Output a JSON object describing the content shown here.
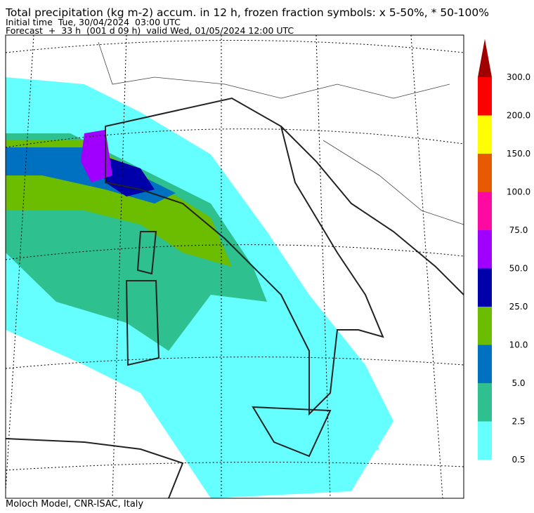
{
  "header": {
    "title": "Total precipitation (kg m-2) accum. in 12 h, frozen fraction symbols: x 5-50%, * 50-100%",
    "initial_time": "Initial time  Tue, 30/04/2024  03:00 UTC",
    "forecast": "Forecast  +  33 h  (001 d 09 h)  valid Wed, 01/05/2024 12:00 UTC"
  },
  "colorbar": {
    "labels": [
      "0.5",
      "2.5",
      "5.0",
      "10.0",
      "25.0",
      "50.0",
      "75.0",
      "100.0",
      "150.0",
      "200.0",
      "300.0"
    ],
    "colors": [
      "#66ffff",
      "#2ec08e",
      "#0070c0",
      "#6cbc00",
      "#0000aa",
      "#a000ff",
      "#ff0aa0",
      "#e85a00",
      "#ffff00",
      "#ff0000",
      "#a00000"
    ]
  },
  "footer": {
    "text": "Moloch Model, CNR-ISAC, Italy"
  }
}
